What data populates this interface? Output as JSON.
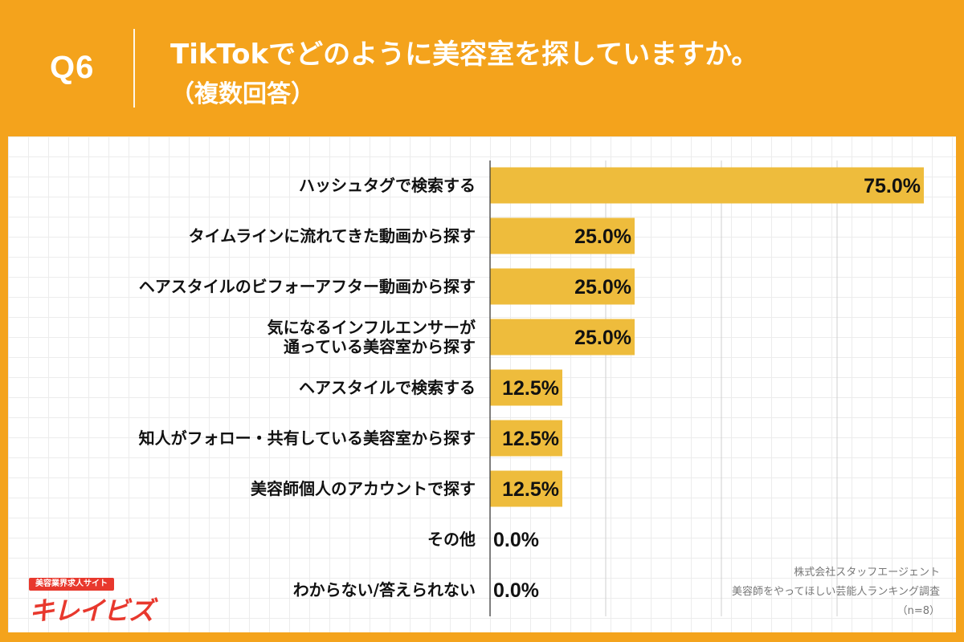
{
  "header": {
    "question_number": "Q6",
    "title_line1": "TikTokでどのように美容室を探していますか。",
    "title_line2": "（複数回答）"
  },
  "colors": {
    "background": "#f4a31c",
    "bar": "#eebc3c",
    "panel": "#ffffff",
    "logo_red": "#e8382d"
  },
  "chart_data": {
    "type": "bar",
    "orientation": "horizontal",
    "categories": [
      [
        "ハッシュタグで検索する"
      ],
      [
        "タイムラインに流れてきた動画から探す"
      ],
      [
        "ヘアスタイルのビフォーアフター動画から探す"
      ],
      [
        "気になるインフルエンサーが",
        "通っている美容室から探す"
      ],
      [
        "ヘアスタイルで検索する"
      ],
      [
        "知人がフォロー・共有している美容室から探す"
      ],
      [
        "美容師個人のアカウントで探す"
      ],
      [
        "その他"
      ],
      [
        "わからない/答えられない"
      ]
    ],
    "values": [
      75.0,
      25.0,
      25.0,
      25.0,
      12.5,
      12.5,
      12.5,
      0.0,
      0.0
    ],
    "value_labels": [
      "75.0%",
      "25.0%",
      "25.0%",
      "25.0%",
      "12.5%",
      "12.5%",
      "12.5%",
      "0.0%",
      "0.0%"
    ],
    "xlim": [
      0,
      75
    ],
    "gridlines": [
      20,
      40,
      60
    ],
    "grid": true
  },
  "logo": {
    "tagline": "美容業界求人サイト",
    "name": "キレイビズ"
  },
  "source": {
    "line1": "株式会社スタッフエージェント",
    "line2": "美容師をやってほしい芸能人ランキング調査",
    "line3": "（n=8）"
  }
}
